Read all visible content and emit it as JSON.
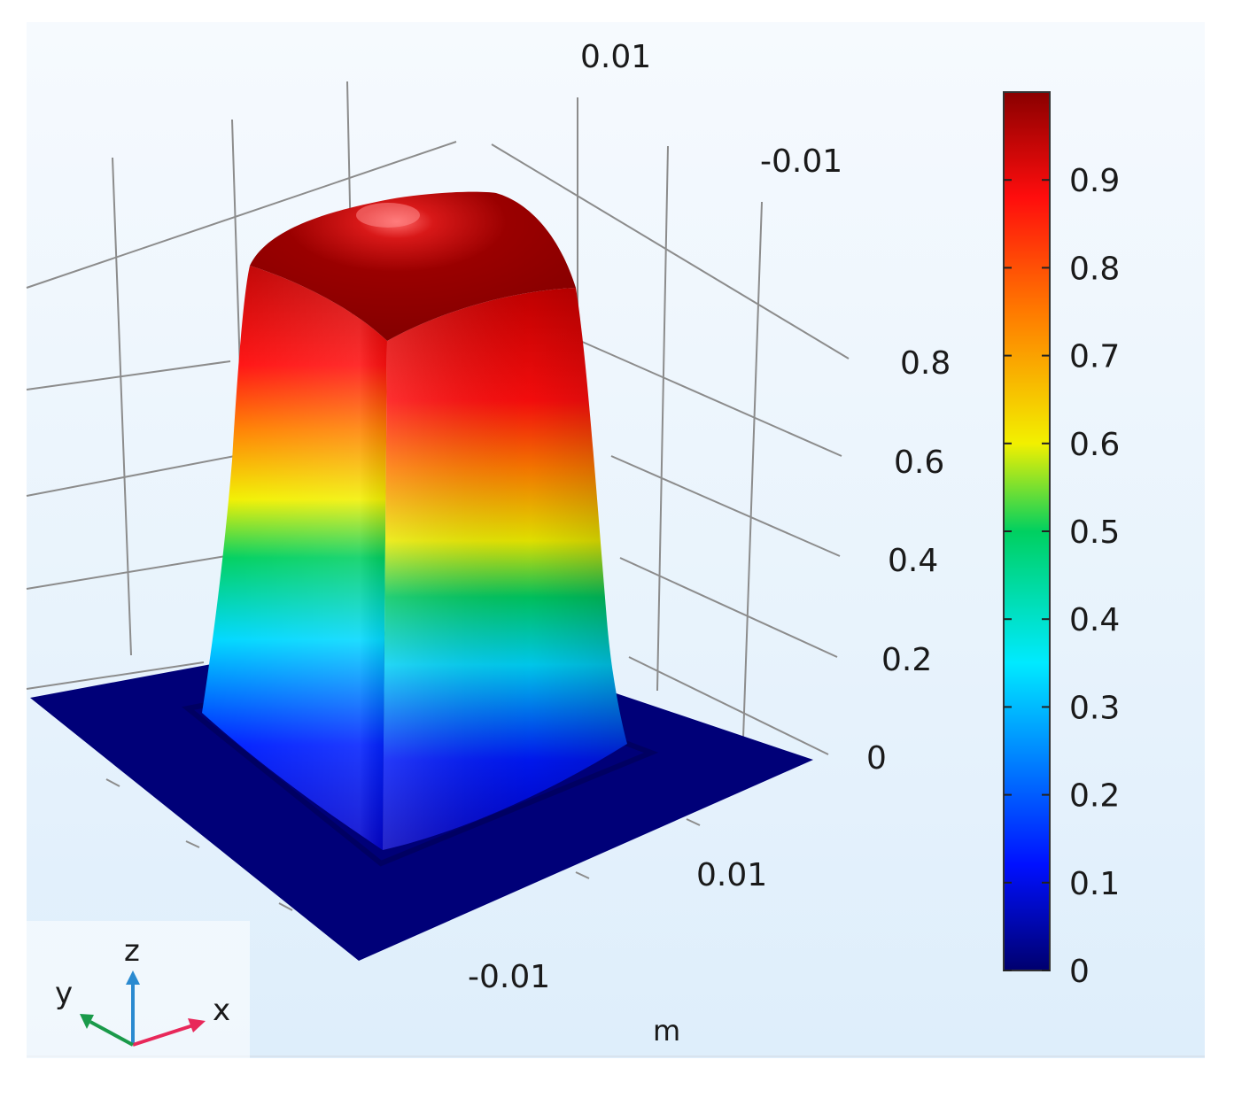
{
  "chart_data": {
    "type": "surface3d",
    "title": "",
    "unit_label": "m",
    "x_axis": {
      "ticks": [
        -0.01,
        0.01
      ],
      "tick_labels": [
        "-0.01",
        "0.01"
      ]
    },
    "y_axis": {
      "ticks": [
        0.01,
        -0.01
      ],
      "tick_labels": [
        "0.01",
        "-0.01"
      ]
    },
    "z_axis": {
      "ticks": [
        0,
        0.2,
        0.4,
        0.6,
        0.8
      ],
      "tick_labels": [
        "0",
        "0.2",
        "0.4",
        "0.6",
        "0.8"
      ]
    },
    "surface": {
      "shape": "rounded square plateau",
      "min_value": 0,
      "max_value": 1,
      "base_value": 0
    },
    "colorbar": {
      "range": [
        0,
        1
      ],
      "ticks": [
        0,
        0.1,
        0.2,
        0.3,
        0.4,
        0.5,
        0.6,
        0.7,
        0.8,
        0.9
      ],
      "tick_labels": [
        "0",
        "0.1",
        "0.2",
        "0.3",
        "0.4",
        "0.5",
        "0.6",
        "0.7",
        "0.8",
        "0.9"
      ],
      "colormap": "rainbow"
    },
    "colors": {
      "low": "#00006e",
      "blue": "#0010ff",
      "cyan": "#00eaff",
      "green": "#00d060",
      "yellow": "#f2f000",
      "orange": "#ff7a00",
      "red": "#ff0d0d",
      "high": "#8a0000",
      "background": "#e6f1fb",
      "grid": "#8c8c8c"
    },
    "axis_triad": {
      "x": "x",
      "y": "y",
      "z": "z",
      "x_color": "#e8285a",
      "y_color": "#1a9a4a",
      "z_color": "#2a8ad0"
    }
  }
}
